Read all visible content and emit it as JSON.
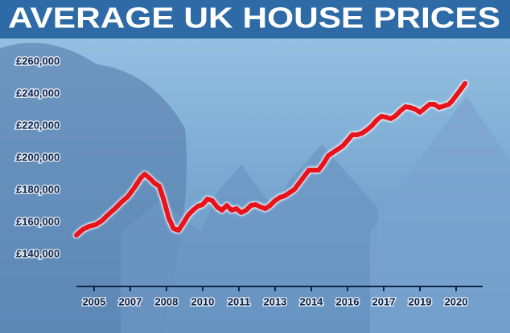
{
  "chart_data": {
    "type": "line",
    "title": "AVERAGE UK HOUSE PRICES",
    "x": [
      2004.27,
      2004.53,
      2004.8,
      2005.07,
      2005.33,
      2005.6,
      2005.87,
      2006.13,
      2006.4,
      2006.67,
      2006.93,
      2007.1,
      2007.3,
      2007.5,
      2007.7,
      2007.9,
      2008.1,
      2008.3,
      2008.5,
      2008.7,
      2008.9,
      2009.1,
      2009.3,
      2009.5,
      2009.7,
      2009.9,
      2010.1,
      2010.3,
      2010.5,
      2010.7,
      2010.9,
      2011.1,
      2011.3,
      2011.5,
      2011.7,
      2011.9,
      2012.1,
      2012.3,
      2012.5,
      2012.7,
      2012.9,
      2013.1,
      2013.3,
      2013.5,
      2013.7,
      2013.9,
      2014.1,
      2014.3,
      2014.5,
      2014.7,
      2014.9,
      2015.1,
      2015.3,
      2015.5,
      2015.7,
      2015.9,
      2016.1,
      2016.3,
      2016.5,
      2016.7,
      2016.9,
      2017.1,
      2017.3,
      2017.5,
      2017.7,
      2017.9,
      2018.1,
      2018.3,
      2018.5,
      2018.7,
      2018.9,
      2019.1,
      2019.3,
      2019.5,
      2019.7,
      2019.83,
      2020.03,
      2020.23,
      2020.37
    ],
    "series": [
      {
        "color": "#e8131b",
        "values": [
          152000,
          155500,
          157500,
          158500,
          161000,
          165000,
          168500,
          172500,
          176000,
          181500,
          187500,
          190000,
          187500,
          184500,
          182500,
          173500,
          162500,
          156000,
          155000,
          159500,
          164500,
          167500,
          170000,
          171000,
          174500,
          173500,
          169500,
          167500,
          170500,
          167500,
          168500,
          166000,
          167500,
          170500,
          171000,
          169500,
          168500,
          170500,
          173500,
          175500,
          176500,
          178500,
          180500,
          184500,
          188500,
          192500,
          192500,
          192500,
          196500,
          201500,
          203500,
          205500,
          207500,
          211000,
          214500,
          214500,
          215500,
          217500,
          220000,
          223500,
          226000,
          225500,
          224500,
          226500,
          229500,
          232000,
          231500,
          230500,
          228500,
          231000,
          233500,
          233500,
          231500,
          232500,
          233500,
          235500,
          239500,
          243500,
          246500
        ]
      }
    ],
    "xlim": [
      2004.27,
      2021.1
    ],
    "xticks": [
      {
        "value": 2005,
        "label": "2005"
      },
      {
        "value": 2006.5,
        "label": "2007"
      },
      {
        "value": 2008,
        "label": "2008"
      },
      {
        "value": 2009.5,
        "label": "2010"
      },
      {
        "value": 2011,
        "label": "2011"
      },
      {
        "value": 2012.5,
        "label": "2013"
      },
      {
        "value": 2014,
        "label": "2014"
      },
      {
        "value": 2015.5,
        "label": "2016"
      },
      {
        "value": 2017,
        "label": "2017"
      },
      {
        "value": 2018.5,
        "label": "2019"
      },
      {
        "value": 2020,
        "label": "2020"
      }
    ],
    "ylim": [
      120000,
      260000
    ],
    "yticks": [
      {
        "value": 140000,
        "label": "£140,000"
      },
      {
        "value": 160000,
        "label": "£160,000"
      },
      {
        "value": 180000,
        "label": "£180,000"
      },
      {
        "value": 200000,
        "label": "£200,000"
      },
      {
        "value": 220000,
        "label": "£220,000"
      },
      {
        "value": 240000,
        "label": "£240,000"
      },
      {
        "value": 260000,
        "label": "£260,000"
      }
    ],
    "grid": false
  }
}
